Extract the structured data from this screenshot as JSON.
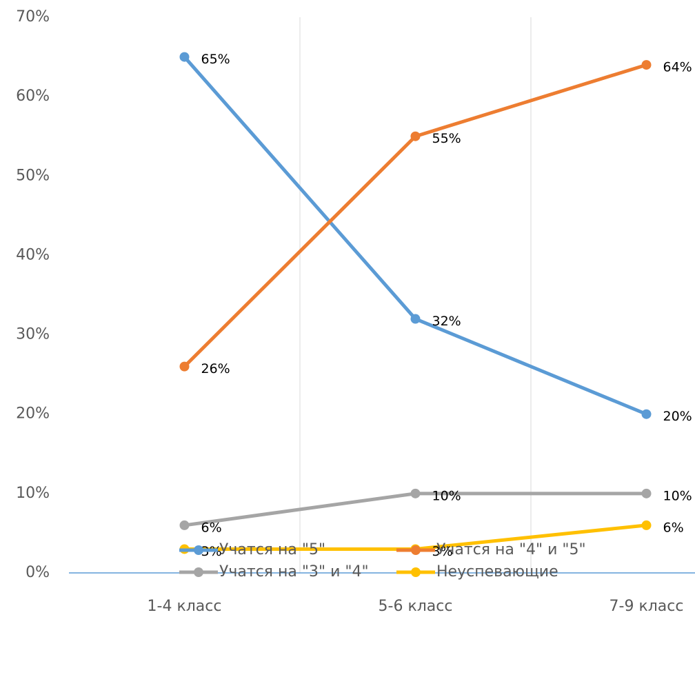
{
  "chart_data": {
    "type": "line",
    "categories": [
      "1-4 класс",
      "5-6 класс",
      "7-9 класс"
    ],
    "series": [
      {
        "name": "Учатся на \"5\"",
        "color": "#5b9bd5",
        "values": [
          65,
          32,
          20
        ],
        "value_labels": [
          "65%",
          "32%",
          "20%"
        ]
      },
      {
        "name": "Учатся на \"4\" и \"5\"",
        "color": "#ed7d31",
        "values": [
          26,
          55,
          64
        ],
        "value_labels": [
          "26%",
          "55%",
          "64%"
        ]
      },
      {
        "name": "Учатся на \"3\" и \"4\"",
        "color": "#a5a5a5",
        "values": [
          6,
          10,
          10
        ],
        "value_labels": [
          "6%",
          "10%",
          "10%"
        ]
      },
      {
        "name": "Неуспевающие",
        "color": "#ffc000",
        "values": [
          3,
          3,
          6
        ],
        "value_labels": [
          "3%",
          "3%",
          "6%"
        ]
      }
    ],
    "ylim": [
      0,
      70
    ],
    "yticks": [
      {
        "value": 0,
        "label": "0%"
      },
      {
        "value": 10,
        "label": "10%"
      },
      {
        "value": 20,
        "label": "20%"
      },
      {
        "value": 30,
        "label": "30%"
      },
      {
        "value": 40,
        "label": "40%"
      },
      {
        "value": 50,
        "label": "50%"
      },
      {
        "value": 60,
        "label": "60%"
      },
      {
        "value": 70,
        "label": "70%"
      }
    ],
    "legend": "bottom"
  }
}
